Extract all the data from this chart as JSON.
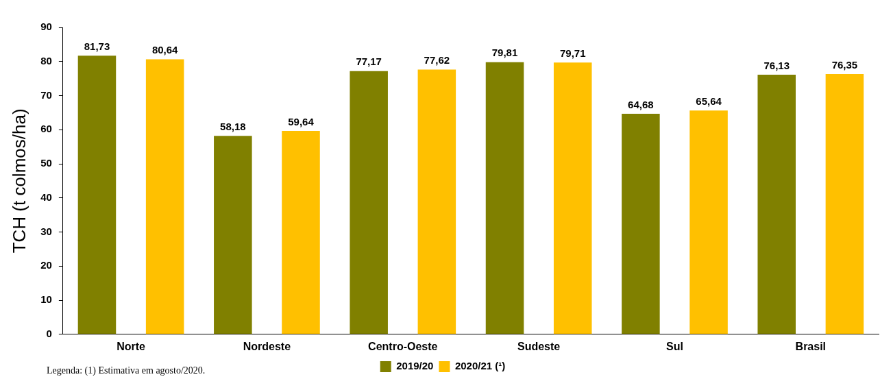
{
  "chart_data": {
    "type": "bar",
    "ylabel": "TCH (t colmos/ha)",
    "categories": [
      "Norte",
      "Nordeste",
      "Centro-Oeste",
      "Sudeste",
      "Sul",
      "Brasil"
    ],
    "series": [
      {
        "name": "2019/20",
        "color": "#808000",
        "values": [
          81.73,
          58.18,
          77.17,
          79.81,
          64.68,
          76.13
        ],
        "value_labels": [
          "81,73",
          "58,18",
          "77,17",
          "79,81",
          "64,68",
          "76,13"
        ]
      },
      {
        "name": "2020/21 (¹)",
        "color": "#ffc000",
        "values": [
          80.64,
          59.64,
          77.62,
          79.71,
          65.64,
          76.35
        ],
        "value_labels": [
          "80,64",
          "59,64",
          "77,62",
          "79,71",
          "65,64",
          "76,35"
        ]
      }
    ],
    "ylim": [
      0,
      90
    ],
    "yticks": [
      0,
      10,
      20,
      30,
      40,
      50,
      60,
      70,
      80,
      90
    ],
    "grid": false,
    "legend": "bottom",
    "annotations": [
      "Legenda: (1) Estimativa em agosto/2020."
    ]
  }
}
